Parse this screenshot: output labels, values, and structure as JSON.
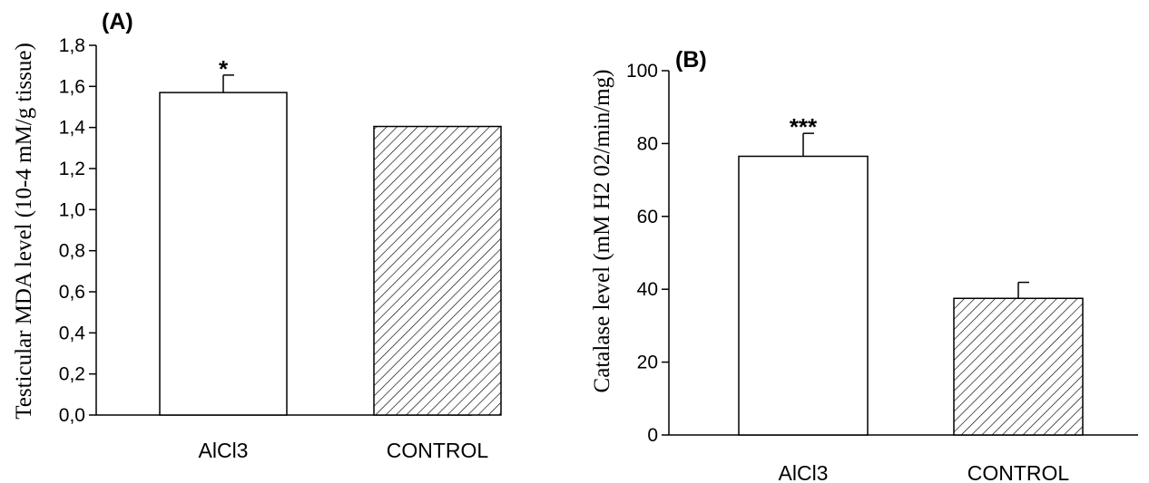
{
  "chart_data": [
    {
      "type": "bar",
      "panel_label": "(A)",
      "ylabel": "Testicular MDA level (10-4 mM/g tissue)",
      "xlabel": "",
      "categories": [
        "AlCl3",
        "CONTROL"
      ],
      "values": [
        1.57,
        1.405
      ],
      "errors": [
        0.085,
        0.0
      ],
      "significance": [
        "*",
        ""
      ],
      "fills": [
        "blank",
        "hatched"
      ],
      "ylim": [
        0,
        1.8
      ],
      "yticks": [
        0,
        0.2,
        0.4,
        0.6,
        0.8,
        1.0,
        1.2,
        1.4,
        1.6,
        1.8
      ],
      "ytick_labels": [
        "0,0",
        "0,2",
        "0,4",
        "0,6",
        "0,8",
        "1,0",
        "1,2",
        "1,4",
        "1,6",
        "1,8"
      ],
      "grid": false
    },
    {
      "type": "bar",
      "panel_label": "(B)",
      "ylabel": "Catalase level (mM H2 02/min/mg)",
      "xlabel": "",
      "categories": [
        "AlCl3",
        "CONTROL"
      ],
      "values": [
        76.5,
        37.5
      ],
      "errors": [
        6.3,
        4.4
      ],
      "significance": [
        "***",
        ""
      ],
      "fills": [
        "blank",
        "hatched"
      ],
      "ylim": [
        0,
        100
      ],
      "yticks": [
        0,
        20,
        40,
        60,
        80,
        100
      ],
      "ytick_labels": [
        "0",
        "20",
        "40",
        "60",
        "80",
        "100"
      ],
      "grid": false
    }
  ]
}
